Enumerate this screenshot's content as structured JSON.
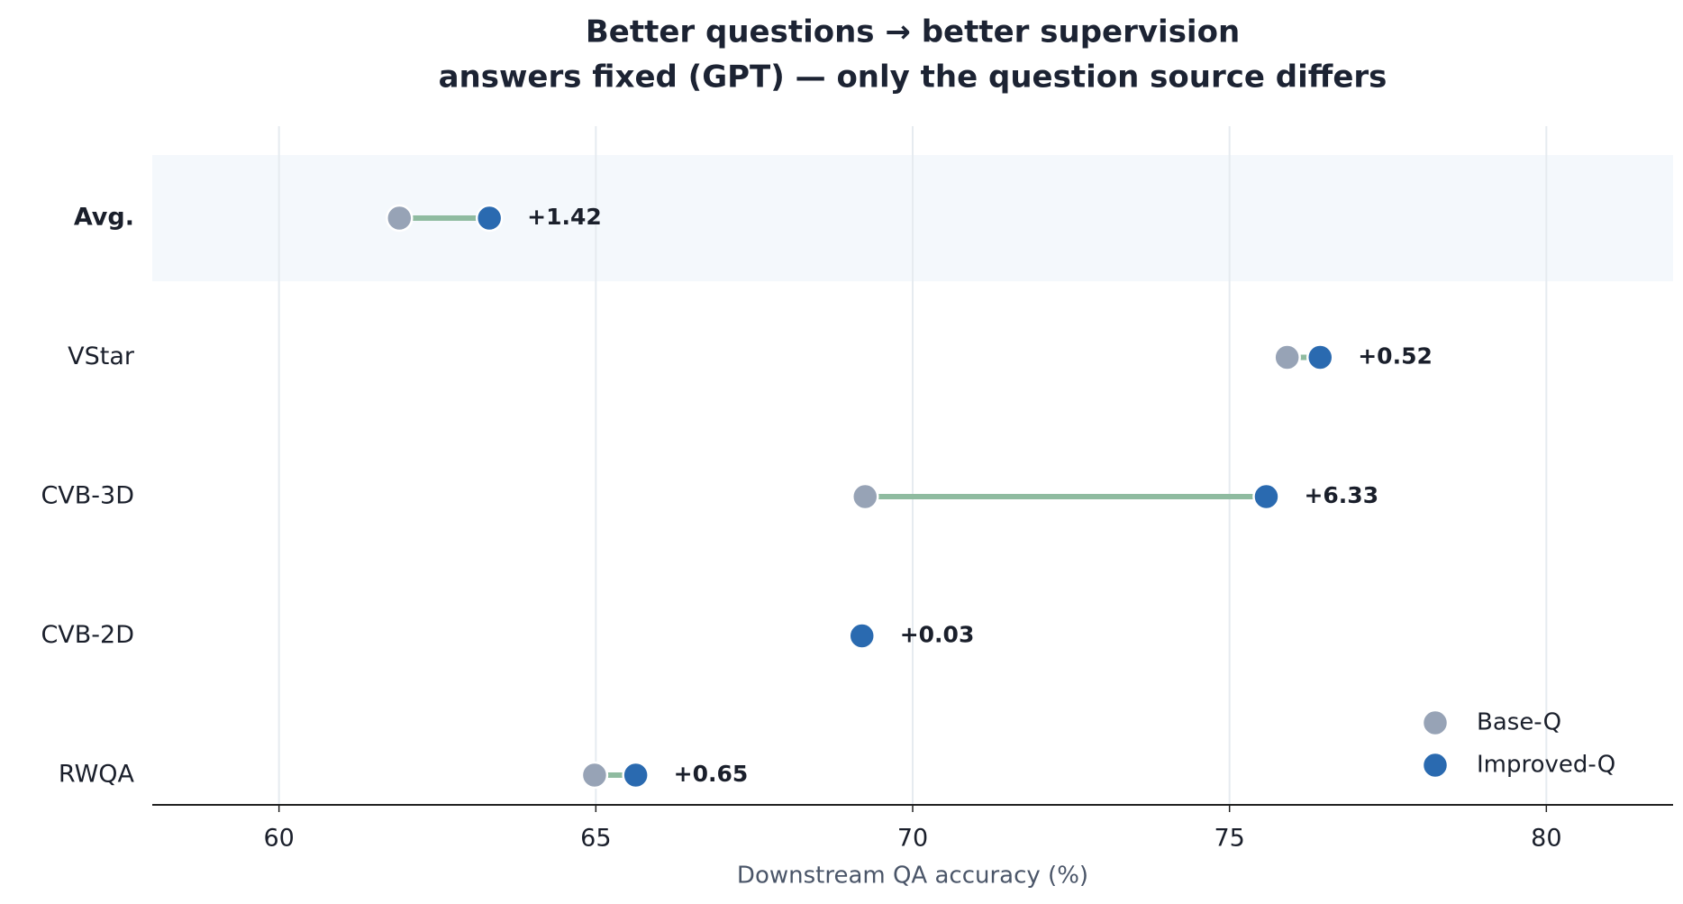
{
  "chart_data": {
    "type": "dumbbell",
    "title": "Better questions → better supervision",
    "subtitle": "answers fixed (GPT) — only the question source differs",
    "x_label": "Downstream QA accuracy (%)",
    "categories": [
      "Avg.",
      "VStar",
      "CVB-3D",
      "CVB-2D",
      "RWQA"
    ],
    "highlight": "Avg.",
    "series": [
      {
        "name": "Base-Q",
        "color": "#97a3b6",
        "values": [
          61.9,
          75.91,
          69.25,
          69.17,
          64.98
        ]
      },
      {
        "name": "Improved-Q",
        "color": "#2a6ab0",
        "values": [
          63.32,
          76.43,
          75.58,
          69.2,
          65.63
        ]
      }
    ],
    "delta_labels": [
      "+1.42",
      "+0.52",
      "+6.33",
      "+0.03",
      "+0.65"
    ],
    "connector_color": "#8fbba0",
    "delta_color": "#2e8050",
    "xlim": [
      58,
      82
    ],
    "xticks": [
      60,
      65,
      70,
      75,
      80
    ],
    "grid": true,
    "legend": "lower right"
  }
}
